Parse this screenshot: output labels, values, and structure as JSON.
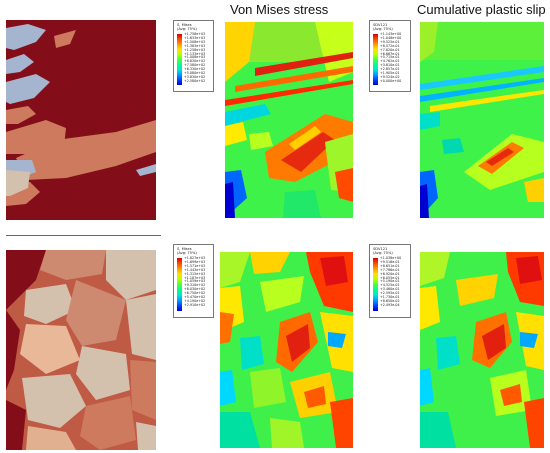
{
  "headings": {
    "von_mises": "Von Mises stress",
    "plastic_slip": "Cumulative plastic slip"
  },
  "legends": {
    "top_stress": {
      "title": "S, Mises\n(Avg: 75%)",
      "values": [
        "+1.758e+03",
        "+1.633e+03",
        "+1.508e+03",
        "+1.383e+03",
        "+1.258e+03",
        "+1.133e+03",
        "+1.008e+03",
        "+8.830e+02",
        "+7.580e+02",
        "+6.330e+02",
        "+5.080e+02",
        "+3.830e+02",
        "+2.580e+02"
      ]
    },
    "top_slip": {
      "title": "SDV121\n(Avg: 75%)",
      "values": [
        "+1.143e+00",
        "+1.048e+00",
        "+9.525e-01",
        "+8.572e-01",
        "+7.620e-01",
        "+6.667e-01",
        "+5.715e-01",
        "+4.762e-01",
        "+3.810e-01",
        "+2.857e-01",
        "+1.905e-01",
        "+9.524e-02",
        "+0.000e+00"
      ]
    },
    "bottom_stress": {
      "title": "S, Mises\n(Avg: 75%)",
      "values": [
        "+1.827e+03",
        "+1.699e+03",
        "+1.571e+03",
        "+1.443e+03",
        "+1.315e+03",
        "+1.187e+03",
        "+1.059e+03",
        "+9.310e+02",
        "+8.030e+02",
        "+6.750e+02",
        "+5.470e+02",
        "+4.190e+02",
        "+2.910e+02"
      ]
    },
    "bottom_slip": {
      "title": "SDV121\n(Avg: 75%)",
      "values": [
        "+1.038e+00",
        "+9.516e-01",
        "+8.651e-01",
        "+7.786e-01",
        "+6.920e-01",
        "+6.055e-01",
        "+5.190e-01",
        "+4.325e-01",
        "+3.460e-01",
        "+2.595e-01",
        "+1.730e-01",
        "+8.650e-02",
        "+2.493e-04"
      ]
    }
  },
  "colors": {
    "grain_dark_red": "#830d18",
    "grain_salmon": "#cd7a5e",
    "grain_light_blue": "#a6b5cf",
    "grain_beige": "#d4c1ad"
  }
}
